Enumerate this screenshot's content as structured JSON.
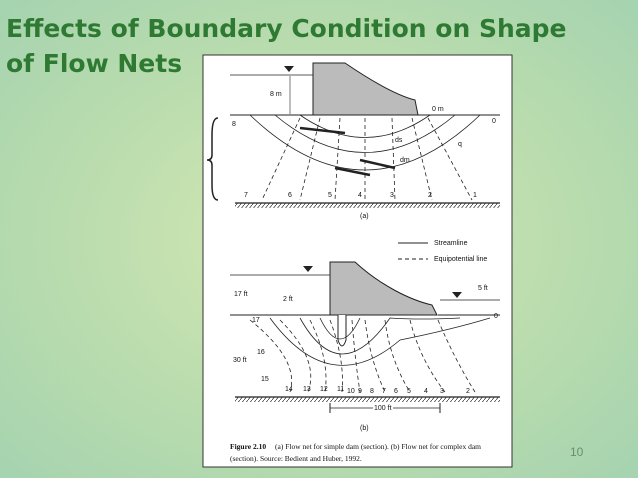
{
  "slide": {
    "title_lines": [
      "Effects of Boundary Condition on Shape",
      "of Flow Nets"
    ],
    "page_number": "10"
  },
  "figure": {
    "part_a": {
      "labels": [
        "8 m",
        "0 m",
        "8",
        "0",
        "ds",
        "dm",
        "q",
        "7",
        "6",
        "5",
        "4",
        "3",
        "2",
        "1"
      ],
      "caption_tag": "(a)"
    },
    "legend": {
      "streamline": "Streamline",
      "equipotential": "Equipotential line"
    },
    "part_b": {
      "labels": [
        "17 ft",
        "2 ft",
        "5 ft",
        "17",
        "0",
        "16",
        "30 ft",
        "15",
        "14",
        "13",
        "12",
        "11",
        "10",
        "9",
        "8",
        "7",
        "6",
        "5",
        "4",
        "3",
        "2",
        "100 ft"
      ],
      "caption_tag": "(b)"
    },
    "caption": {
      "label": "Figure 2.10",
      "lines": [
        "(a) Flow net for simple dam (section). (b) Flow net for complex dam",
        "(section).   Source: Bedient and Huber, 1992."
      ]
    }
  }
}
